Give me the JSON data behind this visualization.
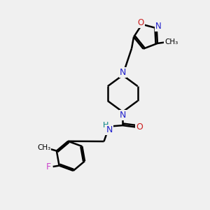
{
  "background_color": "#f0f0f0",
  "atom_colors": {
    "C": "#000000",
    "N": "#2020cc",
    "O": "#cc2020",
    "F": "#cc44cc",
    "H": "#008080"
  },
  "bond_color": "#000000",
  "linewidth": 1.8,
  "figsize": [
    3.0,
    3.0
  ],
  "dpi": 100,
  "xlim": [
    0,
    10
  ],
  "ylim": [
    0,
    10
  ]
}
